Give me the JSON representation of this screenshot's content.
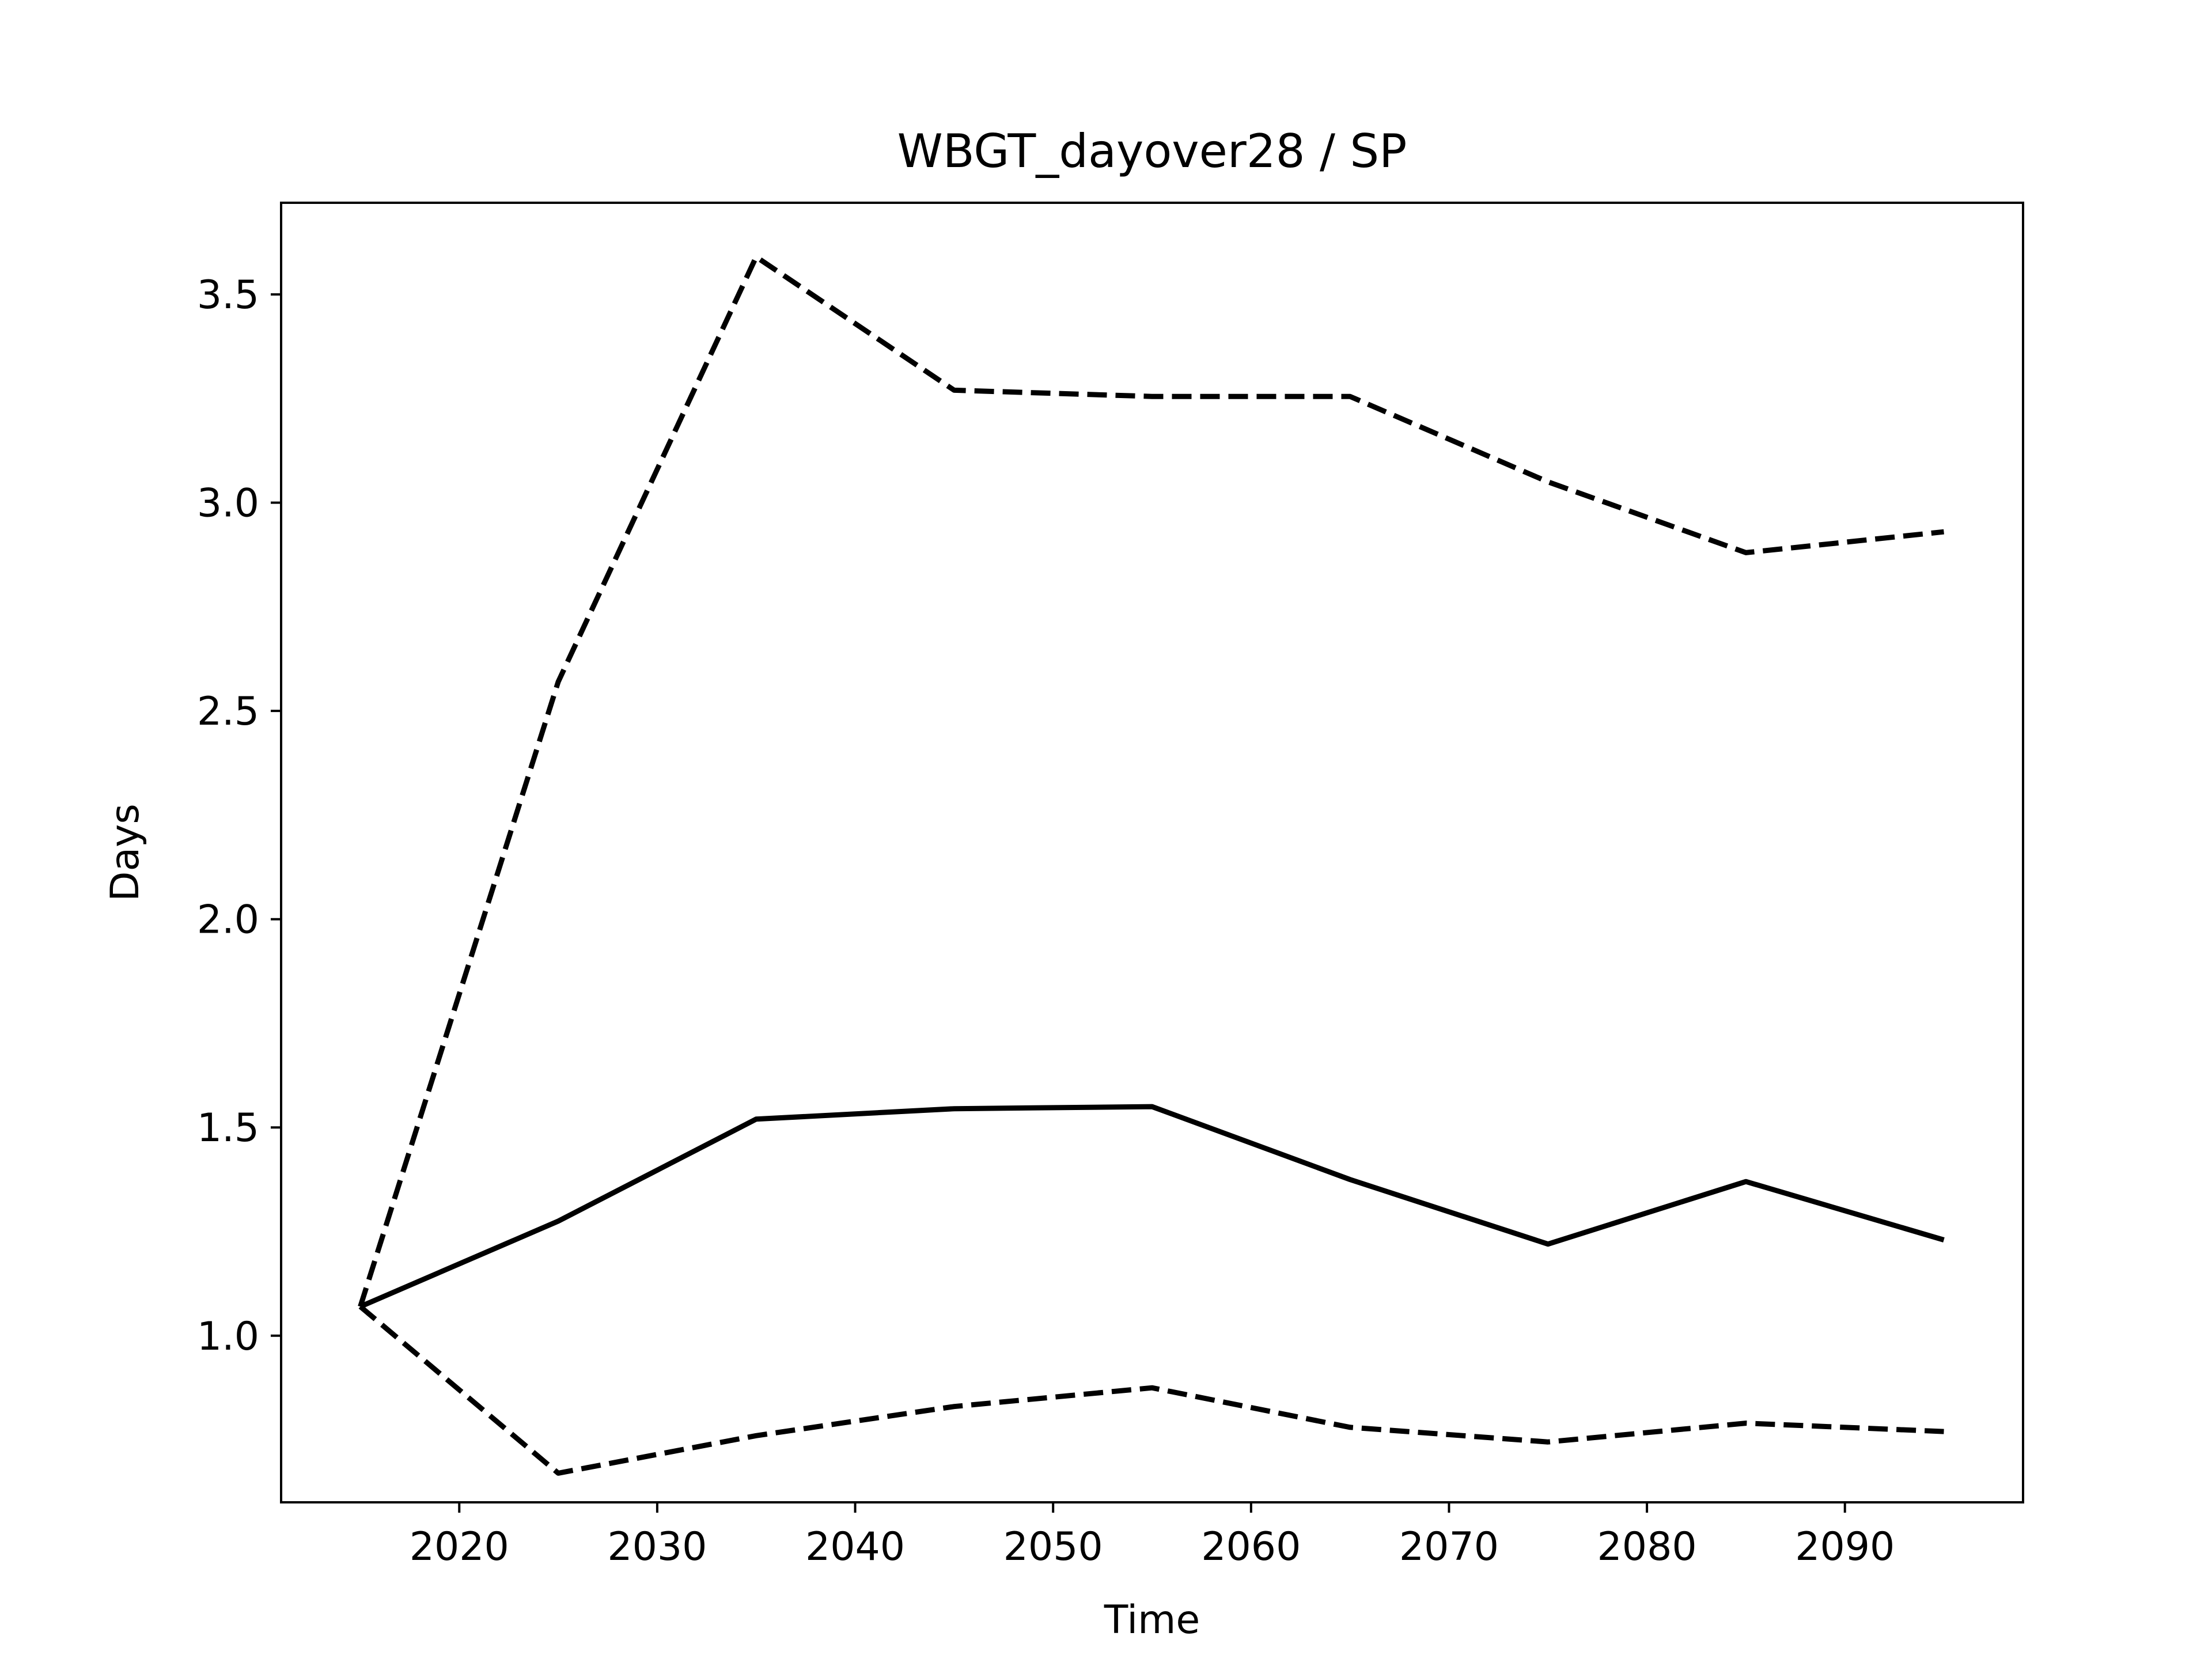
{
  "chart_data": {
    "type": "line",
    "title": "WBGT_dayover28 / SP",
    "xlabel": "Time",
    "ylabel": "Days",
    "xlim": [
      2011,
      2099
    ],
    "ylim": [
      0.6,
      3.72
    ],
    "xticks": [
      2020,
      2030,
      2040,
      2050,
      2060,
      2070,
      2080,
      2090
    ],
    "yticks": [
      1.0,
      1.5,
      2.0,
      2.5,
      3.0,
      3.5
    ],
    "x": [
      2015,
      2025,
      2035,
      2045,
      2055,
      2065,
      2075,
      2085,
      2095
    ],
    "grid": false,
    "series": [
      {
        "style": "dashed",
        "color": "#000000",
        "values": [
          1.07,
          2.57,
          3.59,
          3.27,
          3.255,
          3.255,
          3.05,
          2.88,
          2.93
        ]
      },
      {
        "style": "solid",
        "color": "#000000",
        "values": [
          1.07,
          1.275,
          1.52,
          1.545,
          1.55,
          1.375,
          1.22,
          1.37,
          1.23
        ]
      },
      {
        "style": "dashed",
        "color": "#000000",
        "values": [
          1.07,
          0.67,
          0.76,
          0.83,
          0.875,
          0.78,
          0.745,
          0.79,
          0.77
        ]
      }
    ]
  }
}
